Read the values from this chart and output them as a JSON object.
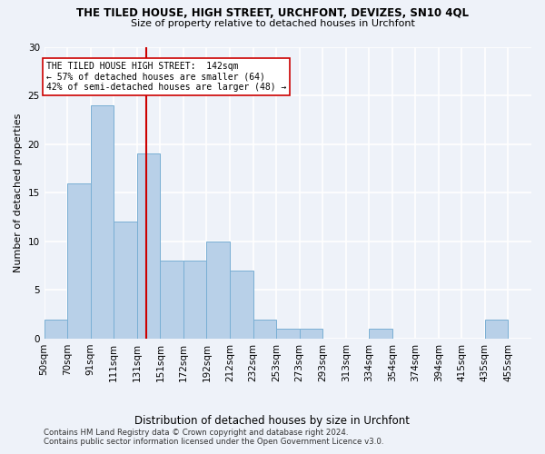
{
  "title": "THE TILED HOUSE, HIGH STREET, URCHFONT, DEVIZES, SN10 4QL",
  "subtitle": "Size of property relative to detached houses in Urchfont",
  "xlabel": "Distribution of detached houses by size in Urchfont",
  "ylabel": "Number of detached properties",
  "bar_color": "#b8d0e8",
  "bar_edge_color": "#7aafd4",
  "bin_labels": [
    "50sqm",
    "70sqm",
    "91sqm",
    "111sqm",
    "131sqm",
    "151sqm",
    "172sqm",
    "192sqm",
    "212sqm",
    "232sqm",
    "253sqm",
    "273sqm",
    "293sqm",
    "313sqm",
    "334sqm",
    "354sqm",
    "374sqm",
    "394sqm",
    "415sqm",
    "435sqm",
    "455sqm"
  ],
  "n_bins": 21,
  "values": [
    2,
    16,
    24,
    12,
    19,
    8,
    8,
    10,
    7,
    2,
    1,
    1,
    0,
    0,
    1,
    0,
    0,
    0,
    0,
    2,
    0
  ],
  "ylim": [
    0,
    30
  ],
  "yticks": [
    0,
    5,
    10,
    15,
    20,
    25,
    30
  ],
  "red_line_x": 4.4,
  "annotation_line1": "THE TILED HOUSE HIGH STREET:  142sqm",
  "annotation_line2": "← 57% of detached houses are smaller (64)",
  "annotation_line3": "42% of semi-detached houses are larger (48) →",
  "red_line_color": "#cc0000",
  "annotation_box_color": "#ffffff",
  "annotation_box_edge": "#cc0000",
  "footer_line1": "Contains HM Land Registry data © Crown copyright and database right 2024.",
  "footer_line2": "Contains public sector information licensed under the Open Government Licence v3.0.",
  "background_color": "#eef2f9",
  "grid_color": "#ffffff"
}
